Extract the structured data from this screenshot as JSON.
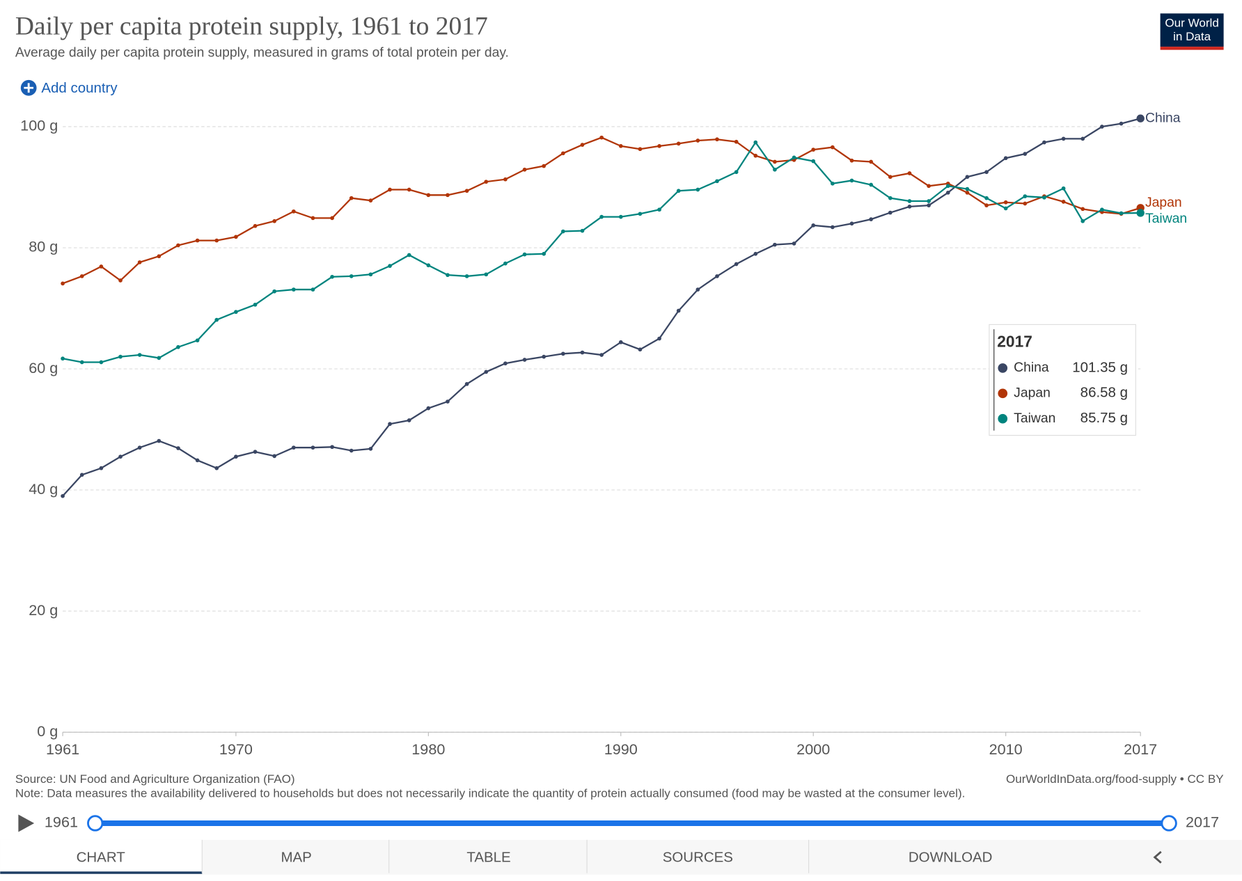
{
  "header": {
    "logo": "Our World in Data",
    "add_country": "Add country"
  },
  "chart_data": {
    "type": "line",
    "title": "Daily per capita protein supply, 1961 to 2017",
    "subtitle": "Average daily per capita protein supply, measured in grams of total protein per day.",
    "x": [
      1961,
      1962,
      1963,
      1964,
      1965,
      1966,
      1967,
      1968,
      1969,
      1970,
      1971,
      1972,
      1973,
      1974,
      1975,
      1976,
      1977,
      1978,
      1979,
      1980,
      1981,
      1982,
      1983,
      1984,
      1985,
      1986,
      1987,
      1988,
      1989,
      1990,
      1991,
      1992,
      1993,
      1994,
      1995,
      1996,
      1997,
      1998,
      1999,
      2000,
      2001,
      2002,
      2003,
      2004,
      2005,
      2006,
      2007,
      2008,
      2009,
      2010,
      2011,
      2012,
      2013,
      2014,
      2015,
      2016,
      2017
    ],
    "series": [
      {
        "name": "China",
        "color": "#3a4663",
        "values": [
          39.0,
          42.5,
          43.6,
          45.5,
          47.0,
          48.1,
          46.9,
          44.9,
          43.6,
          45.5,
          46.3,
          45.6,
          47.0,
          47.0,
          47.1,
          46.5,
          46.8,
          50.9,
          51.5,
          53.5,
          54.6,
          57.5,
          59.5,
          60.9,
          61.5,
          62.0,
          62.5,
          62.7,
          62.3,
          64.4,
          63.2,
          65.0,
          69.6,
          73.1,
          75.3,
          77.3,
          79.0,
          80.5,
          80.7,
          83.7,
          83.4,
          84.0,
          84.7,
          85.8,
          86.8,
          87.0,
          89.1,
          91.7,
          92.5,
          94.8,
          95.5,
          97.4,
          98.0,
          98.0,
          100.0,
          100.5,
          101.35
        ],
        "value_labels": {
          "56": "101.35 g"
        }
      },
      {
        "name": "Japan",
        "color": "#b13507",
        "values": [
          74.1,
          75.3,
          76.9,
          74.6,
          77.6,
          78.6,
          80.4,
          81.2,
          81.2,
          81.8,
          83.6,
          84.4,
          86.0,
          84.9,
          84.9,
          88.2,
          87.8,
          89.6,
          89.6,
          88.7,
          88.7,
          89.4,
          90.9,
          91.3,
          92.9,
          93.5,
          95.6,
          97.0,
          98.2,
          96.8,
          96.3,
          96.8,
          97.2,
          97.7,
          97.9,
          97.5,
          95.2,
          94.2,
          94.5,
          96.2,
          96.6,
          94.4,
          94.2,
          91.7,
          92.3,
          90.2,
          90.6,
          89.1,
          87.0,
          87.5,
          87.3,
          88.5,
          87.6,
          86.4,
          85.9,
          85.6,
          86.58
        ],
        "value_labels": {
          "56": "86.58 g"
        }
      },
      {
        "name": "Taiwan",
        "color": "#00847e",
        "values": [
          61.7,
          61.1,
          61.1,
          62.0,
          62.3,
          61.8,
          63.6,
          64.7,
          68.1,
          69.4,
          70.6,
          72.8,
          73.1,
          73.1,
          75.2,
          75.3,
          75.6,
          77.0,
          78.8,
          77.1,
          75.5,
          75.3,
          75.6,
          77.4,
          78.9,
          79.0,
          82.7,
          82.8,
          85.1,
          85.1,
          85.6,
          86.3,
          89.4,
          89.6,
          91.0,
          92.5,
          97.4,
          92.9,
          94.9,
          94.3,
          90.6,
          91.1,
          90.4,
          88.2,
          87.7,
          87.7,
          90.2,
          89.7,
          88.2,
          86.5,
          88.5,
          88.3,
          89.8,
          84.4,
          86.3,
          85.7,
          85.75
        ],
        "value_labels": {
          "56": "85.75 g"
        }
      }
    ],
    "xlim": [
      1961,
      2017
    ],
    "xticks": [
      1961,
      1970,
      1980,
      1990,
      2000,
      2010,
      2017
    ],
    "ylim": [
      0,
      100
    ],
    "yticks": [
      {
        "value": 0,
        "label": "0 g"
      },
      {
        "value": 20,
        "label": "20 g"
      },
      {
        "value": 40,
        "label": "40 g"
      },
      {
        "value": 60,
        "label": "60 g"
      },
      {
        "value": 80,
        "label": "80 g"
      },
      {
        "value": 100,
        "label": "100 g"
      }
    ],
    "grid": true,
    "source": "Source: UN Food and Agriculture Organization (FAO)",
    "url": "OurWorldInData.org/food-supply • CC BY",
    "note": "Note: Data measures the availability delivered to households but does not necessarily indicate the quantity of protein actually consumed (food may be wasted at the consumer level)."
  },
  "tabs": [
    "CHART",
    "MAP",
    "TABLE",
    "SOURCES",
    "DOWNLOAD"
  ]
}
